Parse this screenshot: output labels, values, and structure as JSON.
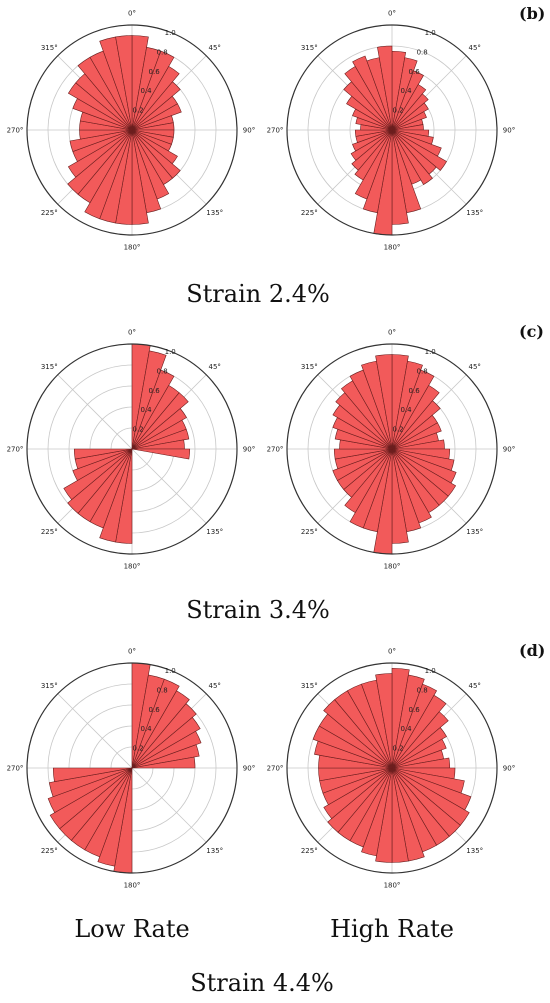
{
  "rows": [
    {
      "panel_label": "(b)",
      "strain_label": "Strain 2.4%"
    },
    {
      "panel_label": "(c)",
      "strain_label": "Strain 3.4%"
    },
    {
      "panel_label": "(d)",
      "strain_label": "Strain 4.4%"
    }
  ],
  "column_labels": [
    "Low Rate",
    "High Rate"
  ],
  "style": {
    "bar_fill": "#f25a5a",
    "bar_edge": "#6b1e1e",
    "grid": "#c8c8c8",
    "frame": "#333333"
  },
  "chart_data": [
    {
      "type": "polar-bar",
      "row": "(b)",
      "column": "Low Rate",
      "angle_ticks": [
        "0°",
        "45°",
        "90°",
        "135°",
        "180°",
        "225°",
        "270°",
        "315°"
      ],
      "radial_ticks": [
        "0.2",
        "0.4",
        "0.6",
        "0.8",
        "1.0"
      ],
      "rlim": [
        0,
        1.0
      ],
      "bin_width_deg": 10,
      "values": [
        0.9,
        0.8,
        0.8,
        0.7,
        0.6,
        0.5,
        0.5,
        0.4,
        0.4,
        0.4,
        0.4,
        0.4,
        0.5,
        0.6,
        0.6,
        0.7,
        0.8,
        0.9,
        0.9,
        0.9,
        0.9,
        0.8,
        0.8,
        0.7,
        0.6,
        0.6,
        0.5,
        0.5,
        0.5,
        0.6,
        0.7,
        0.7,
        0.8,
        0.8,
        0.9,
        0.9
      ]
    },
    {
      "type": "polar-bar",
      "row": "(b)",
      "column": "High Rate",
      "angle_ticks": [
        "0°",
        "45°",
        "90°",
        "135°",
        "180°",
        "225°",
        "270°",
        "315°"
      ],
      "radial_ticks": [
        "0.2",
        "0.4",
        "0.6",
        "0.8",
        "1.0"
      ],
      "rlim": [
        0,
        1.0
      ],
      "bin_width_deg": 10,
      "values": [
        0.75,
        0.7,
        0.6,
        0.5,
        0.45,
        0.4,
        0.35,
        0.3,
        0.3,
        0.35,
        0.4,
        0.5,
        0.6,
        0.55,
        0.6,
        0.55,
        0.8,
        0.9,
        1.0,
        0.8,
        0.7,
        0.55,
        0.5,
        0.45,
        0.4,
        0.35,
        0.35,
        0.3,
        0.35,
        0.4,
        0.5,
        0.6,
        0.7,
        0.75,
        0.7,
        0.8
      ]
    },
    {
      "type": "polar-bar",
      "row": "(c)",
      "column": "Low Rate",
      "angle_ticks": [
        "0°",
        "45°",
        "90°",
        "135°",
        "180°",
        "225°",
        "270°",
        "315°"
      ],
      "radial_ticks": [
        "0.2",
        "0.4",
        "0.6",
        "0.8",
        "1.0"
      ],
      "rlim": [
        0,
        1.0
      ],
      "bin_width_deg": 10,
      "values": [
        1.0,
        0.95,
        0.8,
        0.7,
        0.7,
        0.6,
        0.55,
        0.55,
        0.5,
        0.55,
        0,
        0,
        0,
        0,
        0,
        0,
        0,
        0,
        0.9,
        0.9,
        0.8,
        0.8,
        0.8,
        0.75,
        0.6,
        0.55,
        0.55,
        0,
        0,
        0,
        0,
        0,
        0,
        0,
        0,
        0
      ]
    },
    {
      "type": "polar-bar",
      "row": "(c)",
      "column": "High Rate",
      "angle_ticks": [
        "0°",
        "45°",
        "90°",
        "135°",
        "180°",
        "225°",
        "270°",
        "315°"
      ],
      "radial_ticks": [
        "0.2",
        "0.4",
        "0.6",
        "0.8",
        "1.0"
      ],
      "rlim": [
        0,
        1.0
      ],
      "bin_width_deg": 10,
      "values": [
        0.9,
        0.85,
        0.8,
        0.7,
        0.6,
        0.5,
        0.5,
        0.45,
        0.5,
        0.55,
        0.6,
        0.65,
        0.7,
        0.7,
        0.7,
        0.75,
        0.8,
        0.9,
        1.0,
        0.8,
        0.8,
        0.7,
        0.6,
        0.6,
        0.6,
        0.55,
        0.55,
        0.5,
        0.55,
        0.6,
        0.65,
        0.7,
        0.75,
        0.8,
        0.85,
        0.9
      ]
    },
    {
      "type": "polar-bar",
      "row": "(d)",
      "column": "Low Rate",
      "angle_ticks": [
        "0°",
        "45°",
        "90°",
        "135°",
        "180°",
        "225°",
        "270°",
        "315°"
      ],
      "radial_ticks": [
        "0.2",
        "0.4",
        "0.6",
        "0.8",
        "1.0"
      ],
      "rlim": [
        0,
        1.0
      ],
      "bin_width_deg": 10,
      "values": [
        1.0,
        0.9,
        0.9,
        0.85,
        0.8,
        0.75,
        0.7,
        0.65,
        0.6,
        0,
        0,
        0,
        0,
        0,
        0,
        0,
        0,
        0,
        1.0,
        0.95,
        0.9,
        0.9,
        0.9,
        0.9,
        0.85,
        0.8,
        0.75,
        0,
        0,
        0,
        0,
        0,
        0,
        0,
        0,
        0
      ]
    },
    {
      "type": "polar-bar",
      "row": "(d)",
      "column": "High Rate",
      "angle_ticks": [
        "0°",
        "45°",
        "90°",
        "135°",
        "180°",
        "225°",
        "270°",
        "315°"
      ],
      "radial_ticks": [
        "0.2",
        "0.4",
        "0.6",
        "0.8",
        "1.0"
      ],
      "rlim": [
        0,
        1.0
      ],
      "bin_width_deg": 10,
      "values": [
        0.95,
        0.9,
        0.85,
        0.8,
        0.7,
        0.6,
        0.55,
        0.5,
        0.55,
        0.6,
        0.7,
        0.8,
        0.85,
        0.85,
        0.85,
        0.85,
        0.9,
        0.9,
        0.9,
        0.85,
        0.8,
        0.8,
        0.8,
        0.75,
        0.7,
        0.7,
        0.7,
        0.7,
        0.75,
        0.8,
        0.8,
        0.85,
        0.85,
        0.85,
        0.85,
        0.9
      ]
    }
  ]
}
